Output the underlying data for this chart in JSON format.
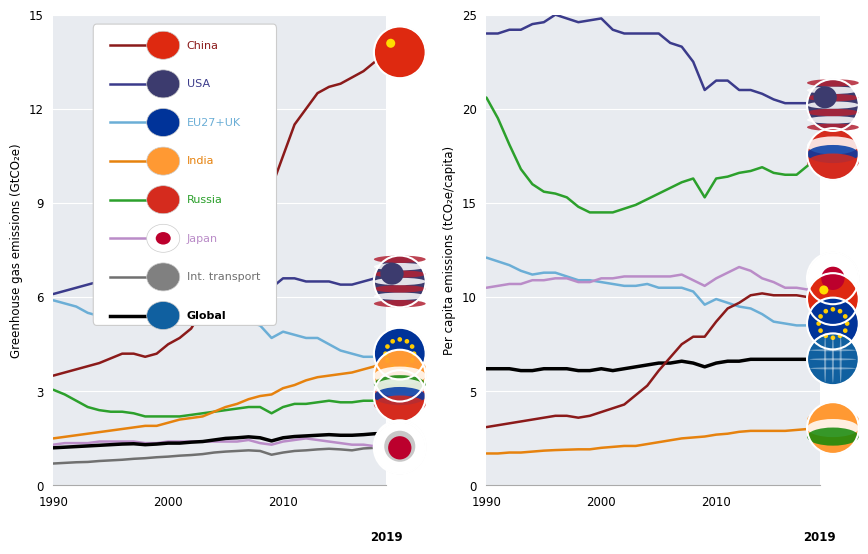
{
  "years": [
    1990,
    1991,
    1992,
    1993,
    1994,
    1995,
    1996,
    1997,
    1998,
    1999,
    2000,
    2001,
    2002,
    2003,
    2004,
    2005,
    2006,
    2007,
    2008,
    2009,
    2010,
    2011,
    2012,
    2013,
    2014,
    2015,
    2016,
    2017,
    2018,
    2019
  ],
  "left": {
    "China": [
      3.5,
      3.6,
      3.7,
      3.8,
      3.9,
      4.05,
      4.2,
      4.2,
      4.1,
      4.2,
      4.5,
      4.7,
      5.0,
      5.6,
      6.2,
      7.2,
      8.0,
      8.9,
      9.5,
      9.5,
      10.5,
      11.5,
      12.0,
      12.5,
      12.7,
      12.8,
      13.0,
      13.2,
      13.5,
      13.8
    ],
    "USA": [
      6.1,
      6.2,
      6.3,
      6.4,
      6.5,
      6.6,
      6.8,
      6.8,
      6.8,
      6.9,
      7.0,
      6.8,
      6.8,
      6.9,
      7.0,
      7.1,
      7.0,
      7.0,
      6.8,
      6.3,
      6.6,
      6.6,
      6.5,
      6.5,
      6.5,
      6.4,
      6.4,
      6.5,
      6.6,
      6.5
    ],
    "EU27+UK": [
      5.9,
      5.8,
      5.7,
      5.5,
      5.4,
      5.5,
      5.5,
      5.4,
      5.3,
      5.3,
      5.3,
      5.2,
      5.2,
      5.2,
      5.3,
      5.2,
      5.2,
      5.2,
      5.1,
      4.7,
      4.9,
      4.8,
      4.7,
      4.7,
      4.5,
      4.3,
      4.2,
      4.1,
      4.1,
      4.2
    ],
    "India": [
      1.5,
      1.55,
      1.6,
      1.65,
      1.7,
      1.75,
      1.8,
      1.85,
      1.9,
      1.9,
      2.0,
      2.1,
      2.15,
      2.2,
      2.35,
      2.5,
      2.6,
      2.75,
      2.85,
      2.9,
      3.1,
      3.2,
      3.35,
      3.45,
      3.5,
      3.55,
      3.6,
      3.7,
      3.8,
      3.5
    ],
    "Russia": [
      3.05,
      2.9,
      2.7,
      2.5,
      2.4,
      2.35,
      2.35,
      2.3,
      2.2,
      2.2,
      2.2,
      2.2,
      2.25,
      2.3,
      2.35,
      2.4,
      2.45,
      2.5,
      2.5,
      2.3,
      2.5,
      2.6,
      2.6,
      2.65,
      2.7,
      2.65,
      2.65,
      2.7,
      2.7,
      2.85
    ],
    "Japan": [
      1.3,
      1.35,
      1.35,
      1.35,
      1.4,
      1.4,
      1.4,
      1.4,
      1.35,
      1.35,
      1.4,
      1.4,
      1.4,
      1.4,
      1.4,
      1.4,
      1.4,
      1.45,
      1.35,
      1.3,
      1.4,
      1.45,
      1.5,
      1.45,
      1.4,
      1.35,
      1.3,
      1.3,
      1.25,
      1.2
    ],
    "Int. transport": [
      0.7,
      0.72,
      0.74,
      0.75,
      0.78,
      0.8,
      0.82,
      0.85,
      0.87,
      0.9,
      0.92,
      0.95,
      0.97,
      1.0,
      1.05,
      1.08,
      1.1,
      1.12,
      1.1,
      0.98,
      1.05,
      1.1,
      1.12,
      1.15,
      1.17,
      1.15,
      1.12,
      1.18,
      1.2,
      1.25
    ],
    "Global": [
      1.2,
      1.22,
      1.24,
      1.26,
      1.28,
      1.3,
      1.32,
      1.33,
      1.3,
      1.32,
      1.35,
      1.35,
      1.38,
      1.4,
      1.45,
      1.5,
      1.52,
      1.55,
      1.52,
      1.42,
      1.52,
      1.56,
      1.58,
      1.6,
      1.62,
      1.6,
      1.6,
      1.62,
      1.65,
      1.65
    ]
  },
  "right": {
    "China": [
      3.1,
      3.2,
      3.3,
      3.4,
      3.5,
      3.6,
      3.7,
      3.7,
      3.6,
      3.7,
      3.9,
      4.1,
      4.3,
      4.8,
      5.3,
      6.1,
      6.8,
      7.5,
      7.9,
      7.9,
      8.7,
      9.4,
      9.7,
      10.1,
      10.2,
      10.1,
      10.1,
      10.1,
      10.0,
      9.9
    ],
    "USA": [
      24.0,
      24.0,
      24.2,
      24.2,
      24.5,
      24.6,
      25.0,
      24.8,
      24.6,
      24.7,
      24.8,
      24.2,
      24.0,
      24.0,
      24.0,
      24.0,
      23.5,
      23.3,
      22.5,
      21.0,
      21.5,
      21.5,
      21.0,
      21.0,
      20.8,
      20.5,
      20.3,
      20.3,
      20.3,
      20.2
    ],
    "EU27+UK": [
      12.1,
      11.9,
      11.7,
      11.4,
      11.2,
      11.3,
      11.3,
      11.1,
      10.9,
      10.9,
      10.8,
      10.7,
      10.6,
      10.6,
      10.7,
      10.5,
      10.5,
      10.5,
      10.3,
      9.6,
      9.9,
      9.7,
      9.5,
      9.4,
      9.1,
      8.7,
      8.6,
      8.5,
      8.5,
      8.6
    ],
    "India": [
      1.7,
      1.7,
      1.75,
      1.75,
      1.8,
      1.85,
      1.88,
      1.9,
      1.92,
      1.92,
      2.0,
      2.05,
      2.1,
      2.1,
      2.2,
      2.3,
      2.4,
      2.5,
      2.55,
      2.6,
      2.7,
      2.75,
      2.85,
      2.9,
      2.9,
      2.9,
      2.9,
      2.95,
      3.0,
      3.05
    ],
    "Russia": [
      20.6,
      19.5,
      18.1,
      16.8,
      16.0,
      15.6,
      15.5,
      15.3,
      14.8,
      14.5,
      14.5,
      14.5,
      14.7,
      14.9,
      15.2,
      15.5,
      15.8,
      16.1,
      16.3,
      15.3,
      16.3,
      16.4,
      16.6,
      16.7,
      16.9,
      16.6,
      16.5,
      16.5,
      17.0,
      17.6
    ],
    "Japan": [
      10.5,
      10.6,
      10.7,
      10.7,
      10.9,
      10.9,
      11.0,
      11.0,
      10.8,
      10.8,
      11.0,
      11.0,
      11.1,
      11.1,
      11.1,
      11.1,
      11.1,
      11.2,
      10.9,
      10.6,
      11.0,
      11.3,
      11.6,
      11.4,
      11.0,
      10.8,
      10.5,
      10.5,
      10.4,
      11.0
    ],
    "Global": [
      6.2,
      6.2,
      6.2,
      6.1,
      6.1,
      6.2,
      6.2,
      6.2,
      6.1,
      6.1,
      6.2,
      6.1,
      6.2,
      6.3,
      6.4,
      6.5,
      6.5,
      6.6,
      6.5,
      6.3,
      6.5,
      6.6,
      6.6,
      6.7,
      6.7,
      6.7,
      6.7,
      6.7,
      6.7,
      6.7
    ]
  },
  "colors": {
    "China": "#8B1A1A",
    "USA": "#3B3B8B",
    "EU27+UK": "#6BAED6",
    "India": "#E6820E",
    "Russia": "#2CA02C",
    "Japan": "#BA8CC8",
    "Int. transport": "#707070",
    "Global": "#000000"
  },
  "flag_colors": {
    "China": [
      "#DE2910",
      "#FFDE00"
    ],
    "USA": [
      "#B22234",
      "#FFFFFF",
      "#3C3B6E"
    ],
    "EU27+UK": [
      "#003399",
      "#FFCC00"
    ],
    "India": [
      "#FF9933",
      "#FFFFFF",
      "#138808",
      "#000080"
    ],
    "Russia": [
      "#FFFFFF",
      "#0039A6",
      "#D52B1E"
    ],
    "Japan": [
      "#FFFFFF",
      "#BC002D"
    ],
    "Int. transport": [
      "#808080",
      "#FFFFFF"
    ],
    "Global": [
      "#000000",
      "#FFFFFF"
    ]
  },
  "left_ylabel": "Greenhouse gas emissions (GtCO₂e)",
  "right_ylabel": "Per capita emissions (tCO₂e/capita)",
  "left_ylim": [
    0,
    15
  ],
  "right_ylim": [
    0,
    25
  ],
  "left_yticks": [
    0,
    3,
    6,
    9,
    12,
    15
  ],
  "right_yticks": [
    0,
    5,
    10,
    15,
    20,
    25
  ],
  "bg_color": "#E8EBF0",
  "fig_bg": "#FFFFFF",
  "linewidth": 1.8,
  "flag_positions_left": [
    [
      "China",
      13.8
    ],
    [
      "USA",
      6.5
    ],
    [
      "EU27+UK",
      4.2
    ],
    [
      "India",
      3.5
    ],
    [
      "Russia",
      2.85
    ],
    [
      "Int. transport",
      1.25
    ],
    [
      "Japan",
      1.2
    ]
  ],
  "flag_positions_right": [
    [
      "USA",
      20.2
    ],
    [
      "Russia",
      17.6
    ],
    [
      "Japan",
      11.0
    ],
    [
      "China",
      9.9
    ],
    [
      "EU27+UK",
      8.6
    ],
    [
      "Global",
      6.7
    ],
    [
      "India",
      3.05
    ]
  ]
}
